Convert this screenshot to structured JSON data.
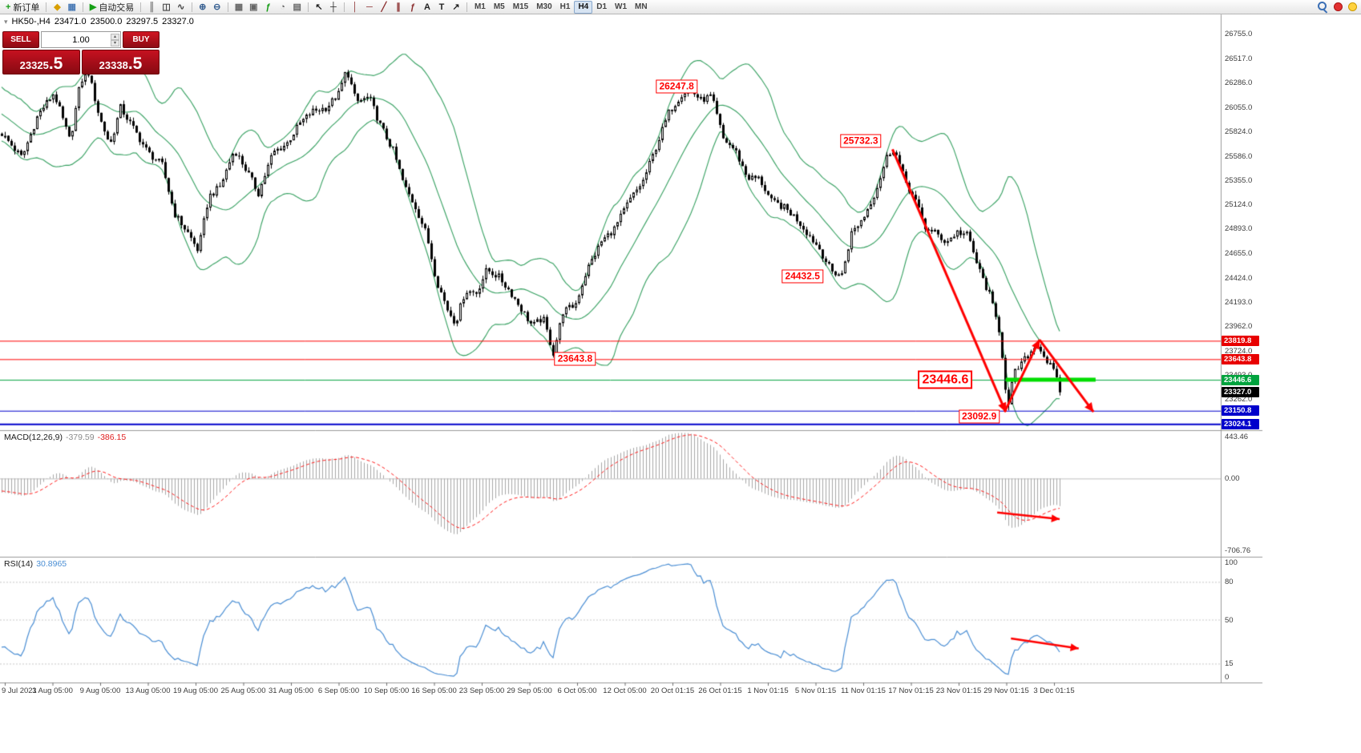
{
  "toolbar": {
    "new_order_label": "新订单",
    "auto_trading_label": "自动交易",
    "groups": [
      [
        {
          "name": "new-order-button",
          "glyph": "+",
          "color": "#149c14",
          "label": "新订单"
        }
      ],
      [
        {
          "name": "metaeditor-button",
          "glyph": "◆",
          "color": "#d89f00"
        },
        {
          "name": "market-watch-button",
          "glyph": "▦",
          "color": "#4a7ab5"
        }
      ],
      [
        {
          "name": "auto-trading-button",
          "glyph": "▶",
          "color": "#16a016",
          "label": "自动交易"
        }
      ],
      [
        {
          "name": "bar-chart-button",
          "glyph": "║",
          "color": "#444444"
        },
        {
          "name": "candlestick-chart-button",
          "glyph": "◫",
          "color": "#444444"
        },
        {
          "name": "line-chart-button",
          "glyph": "∿",
          "color": "#444444"
        }
      ],
      [
        {
          "name": "zoom-in-button",
          "glyph": "⊕",
          "color": "#365f91"
        },
        {
          "name": "zoom-out-button",
          "glyph": "⊖",
          "color": "#365f91"
        }
      ],
      [
        {
          "name": "tile-windows-button",
          "glyph": "▦",
          "color": "#666666"
        },
        {
          "name": "arrange-windows-button",
          "glyph": "▣",
          "color": "#666666"
        },
        {
          "name": "indicators-button",
          "glyph": "ƒ",
          "color": "#149c14"
        },
        {
          "name": "periods-button",
          "glyph": "◔",
          "color": "#666666"
        },
        {
          "name": "templates-button",
          "glyph": "▤",
          "color": "#666666"
        }
      ],
      [
        {
          "name": "cursor-button",
          "glyph": "↖",
          "color": "#222222"
        },
        {
          "name": "crosshair-button",
          "glyph": "┼",
          "color": "#222222"
        }
      ],
      [
        {
          "name": "vertical-line-button",
          "glyph": "│",
          "color": "#8b2f2f"
        },
        {
          "name": "horizontal-line-button",
          "glyph": "─",
          "color": "#8b2f2f"
        },
        {
          "name": "trendline-button",
          "glyph": "╱",
          "color": "#8b2f2f"
        },
        {
          "name": "channel-button",
          "glyph": "∥",
          "color": "#8b2f2f"
        },
        {
          "name": "fibonacci-button",
          "glyph": "ƒ",
          "color": "#8b2f2f"
        },
        {
          "name": "text-button",
          "glyph": "A",
          "color": "#222222"
        },
        {
          "name": "label-button",
          "glyph": "T",
          "color": "#222222"
        },
        {
          "name": "arrows-button",
          "glyph": "↗",
          "color": "#222222"
        }
      ]
    ],
    "timeframes": [
      "M1",
      "M5",
      "M15",
      "M30",
      "H1",
      "H4",
      "D1",
      "W1",
      "MN"
    ],
    "active_timeframe": "H4"
  },
  "chart_header": {
    "symbol_period": "HK50-,H4",
    "open": "23471.0",
    "high": "23500.0",
    "low": "23297.5",
    "close": "23327.0"
  },
  "one_click": {
    "sell_label": "SELL",
    "buy_label": "BUY",
    "volume": "1.00",
    "sell_price": "23325",
    "sell_fraction": ".5",
    "buy_price": "23338",
    "buy_fraction": ".5"
  },
  "price_axis": {
    "labels": [
      "26755.0",
      "26517.0",
      "26286.0",
      "26055.0",
      "25824.0",
      "25586.0",
      "25355.0",
      "25124.0",
      "24893.0",
      "24655.0",
      "24424.0",
      "24193.0",
      "23962.0",
      "23724.0",
      "23493.0",
      "23262.0"
    ]
  },
  "price_tags": [
    {
      "label": "23819.8",
      "color": "#e80000"
    },
    {
      "label": "23643.8",
      "color": "#e80000"
    },
    {
      "label": "23446.6",
      "color": "#00a33e"
    },
    {
      "label": "23327.0",
      "color": "#000000"
    },
    {
      "label": "23150.8",
      "color": "#0000cc"
    },
    {
      "label": "23024.1",
      "color": "#0000cc"
    }
  ],
  "macd": {
    "name": "MACD(12,26,9)",
    "main_value": "-379.59",
    "signal_value": "-386.15",
    "axis_labels": [
      "443.46",
      "0.00",
      "-706.76"
    ]
  },
  "rsi": {
    "name": "RSI(14)",
    "value": "30.8965",
    "axis_labels": [
      "100",
      "80",
      "50",
      "15",
      "0"
    ],
    "levels": [
      100,
      80,
      50,
      15,
      0
    ],
    "level_lines": [
      80,
      50,
      15
    ]
  },
  "time_axis": {
    "labels": [
      "9 Jul 2021",
      "3 Aug 05:00",
      "9 Aug 05:00",
      "13 Aug 05:00",
      "19 Aug 05:00",
      "25 Aug 05:00",
      "31 Aug 05:00",
      "6 Sep 05:00",
      "10 Sep 05:00",
      "16 Sep 05:00",
      "23 Sep 05:00",
      "29 Sep 05:00",
      "6 Oct 05:00",
      "12 Oct 05:00",
      "20 Oct 01:15",
      "26 Oct 01:15",
      "1 Nov 01:15",
      "5 Nov 01:15",
      "11 Nov 01:15",
      "17 Nov 01:15",
      "23 Nov 01:15",
      "29 Nov 01:15",
      "3 Dec 01:15"
    ]
  },
  "chart_data": {
    "type": "candlestick",
    "symbol": "HK50-",
    "timeframe": "H4",
    "ohlc_current": {
      "open": 23471.0,
      "high": 23500.0,
      "low": 23297.5,
      "close": 23327.0
    },
    "bid": 23325.5,
    "ask": 23338.5,
    "ylim": [
      22965,
      26940
    ],
    "price_path": [
      [
        0.0,
        25800
      ],
      [
        0.0189,
        25570
      ],
      [
        0.0341,
        25980
      ],
      [
        0.0492,
        26190
      ],
      [
        0.0644,
        25725
      ],
      [
        0.0742,
        26300
      ],
      [
        0.0818,
        26380
      ],
      [
        0.0924,
        25950
      ],
      [
        0.1023,
        25690
      ],
      [
        0.1121,
        26050
      ],
      [
        0.1273,
        25800
      ],
      [
        0.1379,
        25620
      ],
      [
        0.1515,
        25500
      ],
      [
        0.1629,
        25040
      ],
      [
        0.1758,
        24850
      ],
      [
        0.1856,
        24680
      ],
      [
        0.1955,
        25200
      ],
      [
        0.2061,
        25290
      ],
      [
        0.2197,
        25650
      ],
      [
        0.2311,
        25450
      ],
      [
        0.2424,
        25230
      ],
      [
        0.2561,
        25620
      ],
      [
        0.2689,
        25700
      ],
      [
        0.2818,
        25900
      ],
      [
        0.2939,
        26015
      ],
      [
        0.3068,
        26050
      ],
      [
        0.3182,
        26180
      ],
      [
        0.3258,
        26420
      ],
      [
        0.3348,
        26100
      ],
      [
        0.347,
        26150
      ],
      [
        0.3576,
        25880
      ],
      [
        0.3697,
        25640
      ],
      [
        0.3803,
        25300
      ],
      [
        0.3909,
        25100
      ],
      [
        0.4015,
        24830
      ],
      [
        0.4106,
        24400
      ],
      [
        0.4212,
        24120
      ],
      [
        0.4288,
        23990
      ],
      [
        0.4379,
        24300
      ],
      [
        0.4485,
        24280
      ],
      [
        0.4583,
        24500
      ],
      [
        0.4697,
        24430
      ],
      [
        0.4811,
        24280
      ],
      [
        0.4924,
        24100
      ],
      [
        0.5015,
        23960
      ],
      [
        0.5114,
        24040
      ],
      [
        0.5212,
        23700
      ],
      [
        0.5303,
        24100
      ],
      [
        0.5417,
        24160
      ],
      [
        0.553,
        24500
      ],
      [
        0.5667,
        24770
      ],
      [
        0.5795,
        24900
      ],
      [
        0.5924,
        25150
      ],
      [
        0.6061,
        25350
      ],
      [
        0.6174,
        25650
      ],
      [
        0.6303,
        26000
      ],
      [
        0.6424,
        26180
      ],
      [
        0.65,
        26230
      ],
      [
        0.6606,
        26120
      ],
      [
        0.6705,
        26160
      ],
      [
        0.6818,
        25750
      ],
      [
        0.6932,
        25640
      ],
      [
        0.7045,
        25380
      ],
      [
        0.7159,
        25370
      ],
      [
        0.7273,
        25150
      ],
      [
        0.7386,
        25100
      ],
      [
        0.75,
        25000
      ],
      [
        0.7614,
        24850
      ],
      [
        0.7727,
        24700
      ],
      [
        0.7841,
        24480
      ],
      [
        0.7939,
        24450
      ],
      [
        0.803,
        24850
      ],
      [
        0.8144,
        25000
      ],
      [
        0.8258,
        25250
      ],
      [
        0.8371,
        25600
      ],
      [
        0.8432,
        25660
      ],
      [
        0.8523,
        25380
      ],
      [
        0.8636,
        25150
      ],
      [
        0.8727,
        24900
      ],
      [
        0.8826,
        24850
      ],
      [
        0.8924,
        24760
      ],
      [
        0.903,
        24860
      ],
      [
        0.9129,
        24830
      ],
      [
        0.9227,
        24520
      ],
      [
        0.9333,
        24260
      ],
      [
        0.9432,
        23900
      ],
      [
        0.9508,
        23150
      ],
      [
        0.9561,
        23500
      ],
      [
        0.9636,
        23600
      ],
      [
        0.9712,
        23700
      ],
      [
        0.9788,
        23790
      ],
      [
        0.9833,
        23700
      ],
      [
        0.9894,
        23600
      ],
      [
        0.9947,
        23520
      ],
      [
        1.0,
        23327
      ]
    ],
    "overlays": {
      "bollinger": {
        "period": 20,
        "deviation": 2,
        "color": "#35a060"
      }
    },
    "horizontal_lines": [
      {
        "price": 23819.8,
        "color": "#ff0000",
        "width": 1
      },
      {
        "price": 23643.8,
        "color": "#ff0000",
        "width": 1
      },
      {
        "price": 23446.6,
        "color": "#00a33e",
        "width": 1
      },
      {
        "price": 23150.8,
        "color": "#0000cc",
        "width": 1
      },
      {
        "price": 23024.1,
        "color": "#0000cc",
        "width": 2
      }
    ],
    "green_segment": {
      "price": 23446.6,
      "x1": 0.949,
      "x2": 1.034,
      "color": "#00dd00",
      "width": 5
    },
    "annotations": [
      {
        "text": "26247.8",
        "x": 0.638,
        "price": 26247.8
      },
      {
        "text": "25732.3",
        "x": 0.812,
        "price": 25732.3
      },
      {
        "text": "24432.5",
        "x": 0.757,
        "price": 24432.5
      },
      {
        "text": "23643.8",
        "x": 0.542,
        "price": 23643.8
      },
      {
        "text": "23446.6",
        "x": 0.892,
        "price": 23446.6,
        "large": true
      },
      {
        "text": "23092.9",
        "x": 0.924,
        "price": 23092.9
      }
    ],
    "arrows": [
      {
        "panel": "main",
        "x1": 0.842,
        "y1": 25650,
        "x2": 0.949,
        "y2": 23140,
        "w": 3
      },
      {
        "panel": "main",
        "x1": 0.948,
        "y1": 23140,
        "x2": 0.981,
        "y2": 23830,
        "w": 3
      },
      {
        "panel": "main",
        "x1": 0.981,
        "y1": 23830,
        "x2": 1.032,
        "y2": 23140,
        "w": 3
      },
      {
        "panel": "macd",
        "x1": 0.941,
        "y1": -330,
        "x2": 1.0,
        "y2": -395,
        "w": 2.5
      },
      {
        "panel": "rsi",
        "x1": 0.954,
        "y1": 35,
        "x2": 1.018,
        "y2": 27,
        "w": 2.5
      }
    ],
    "macd_panel": {
      "params": [
        12,
        26,
        9
      ],
      "current_main": -379.59,
      "current_signal": -386.15,
      "range": [
        -706.76,
        443.46
      ],
      "display_range": [
        -760,
        470
      ]
    },
    "rsi_panel": {
      "period": 14,
      "current": 30.8965,
      "range": [
        0,
        100
      ]
    }
  }
}
